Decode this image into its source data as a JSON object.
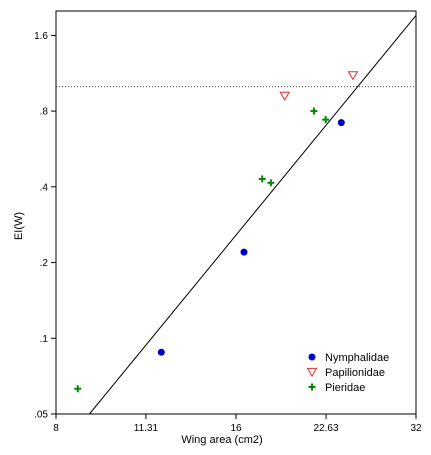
{
  "chart_data": {
    "type": "scatter",
    "xlabel": "Wing area (cm2)",
    "ylabel": "EI(W)",
    "x_scale": "log",
    "y_scale": "log",
    "xlim": [
      8,
      32
    ],
    "ylim": [
      0.05,
      2.0
    ],
    "x_ticks": [
      {
        "value": 8,
        "label": "8"
      },
      {
        "value": 11.31,
        "label": "11.31"
      },
      {
        "value": 16,
        "label": "16"
      },
      {
        "value": 22.63,
        "label": "22.63"
      },
      {
        "value": 32,
        "label": "32"
      }
    ],
    "y_ticks": [
      {
        "value": 0.05,
        "label": ".05"
      },
      {
        "value": 0.1,
        "label": ".1"
      },
      {
        "value": 0.2,
        "label": ".2"
      },
      {
        "value": 0.4,
        "label": ".4"
      },
      {
        "value": 0.8,
        "label": ".8"
      },
      {
        "value": 1.6,
        "label": "1.6"
      }
    ],
    "reference_line": {
      "y": 1.0,
      "style": "dotted"
    },
    "fit_line": {
      "x": [
        9.1,
        32
      ],
      "y": [
        0.05,
        1.92
      ]
    },
    "legend_position": "bottom-right",
    "series": [
      {
        "name": "Nymphalidae",
        "marker": "filled-circle",
        "color": "#0000cc",
        "x": [
          12.0,
          16.5,
          24.0
        ],
        "y": [
          0.088,
          0.22,
          0.72
        ]
      },
      {
        "name": "Papilionidae",
        "marker": "open-triangle-down",
        "color": "#e03030",
        "x": [
          19.3,
          25.1
        ],
        "y": [
          0.92,
          1.11
        ]
      },
      {
        "name": "Pieridae",
        "marker": "plus",
        "color": "#008800",
        "x": [
          8.7,
          17.7,
          18.3,
          21.6,
          22.6
        ],
        "y": [
          0.063,
          0.43,
          0.415,
          0.8,
          0.74
        ]
      }
    ]
  }
}
